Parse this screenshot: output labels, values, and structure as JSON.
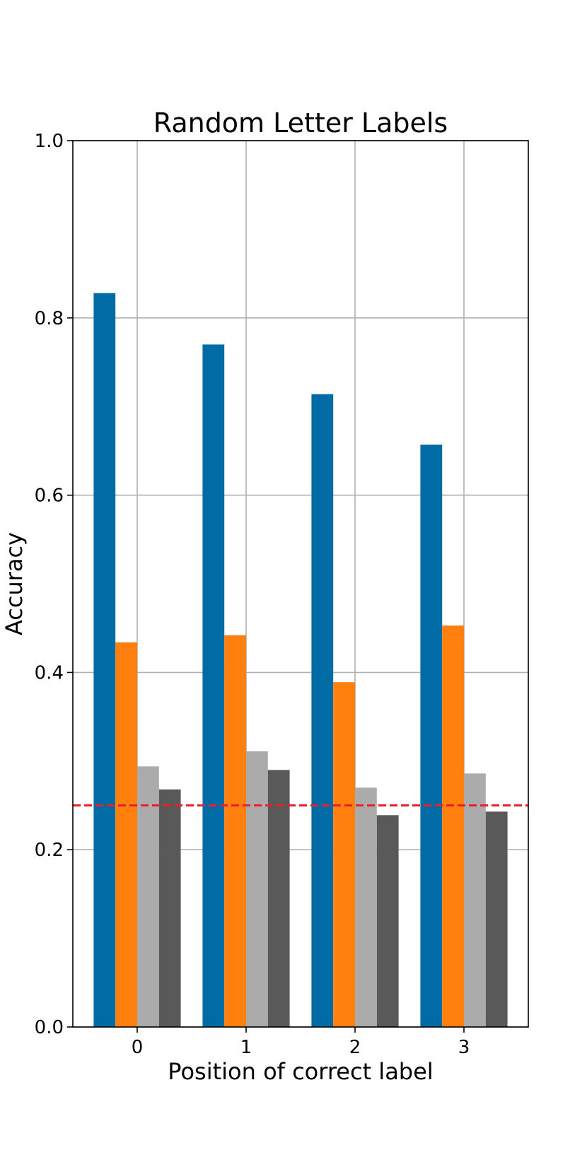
{
  "chart_data": {
    "type": "bar",
    "title": "Random Letter Labels",
    "xlabel": "Position of correct label",
    "ylabel": "Accuracy",
    "categories": [
      "0",
      "1",
      "2",
      "3"
    ],
    "ylim": [
      0,
      1
    ],
    "yticks": [
      "0.0",
      "0.2",
      "0.4",
      "0.6",
      "0.8",
      "1.0"
    ],
    "grid": true,
    "legend": "none",
    "reference_line": {
      "y": 0.25,
      "color": "#e8202a",
      "style": "dashed"
    },
    "series": [
      {
        "color": "#006ba4",
        "values": [
          0.828,
          0.77,
          0.714,
          0.657
        ]
      },
      {
        "color": "#ff800e",
        "values": [
          0.434,
          0.442,
          0.389,
          0.453
        ]
      },
      {
        "color": "#ababab",
        "values": [
          0.294,
          0.311,
          0.27,
          0.286
        ]
      },
      {
        "color": "#595959",
        "values": [
          0.268,
          0.29,
          0.239,
          0.243
        ]
      }
    ]
  }
}
